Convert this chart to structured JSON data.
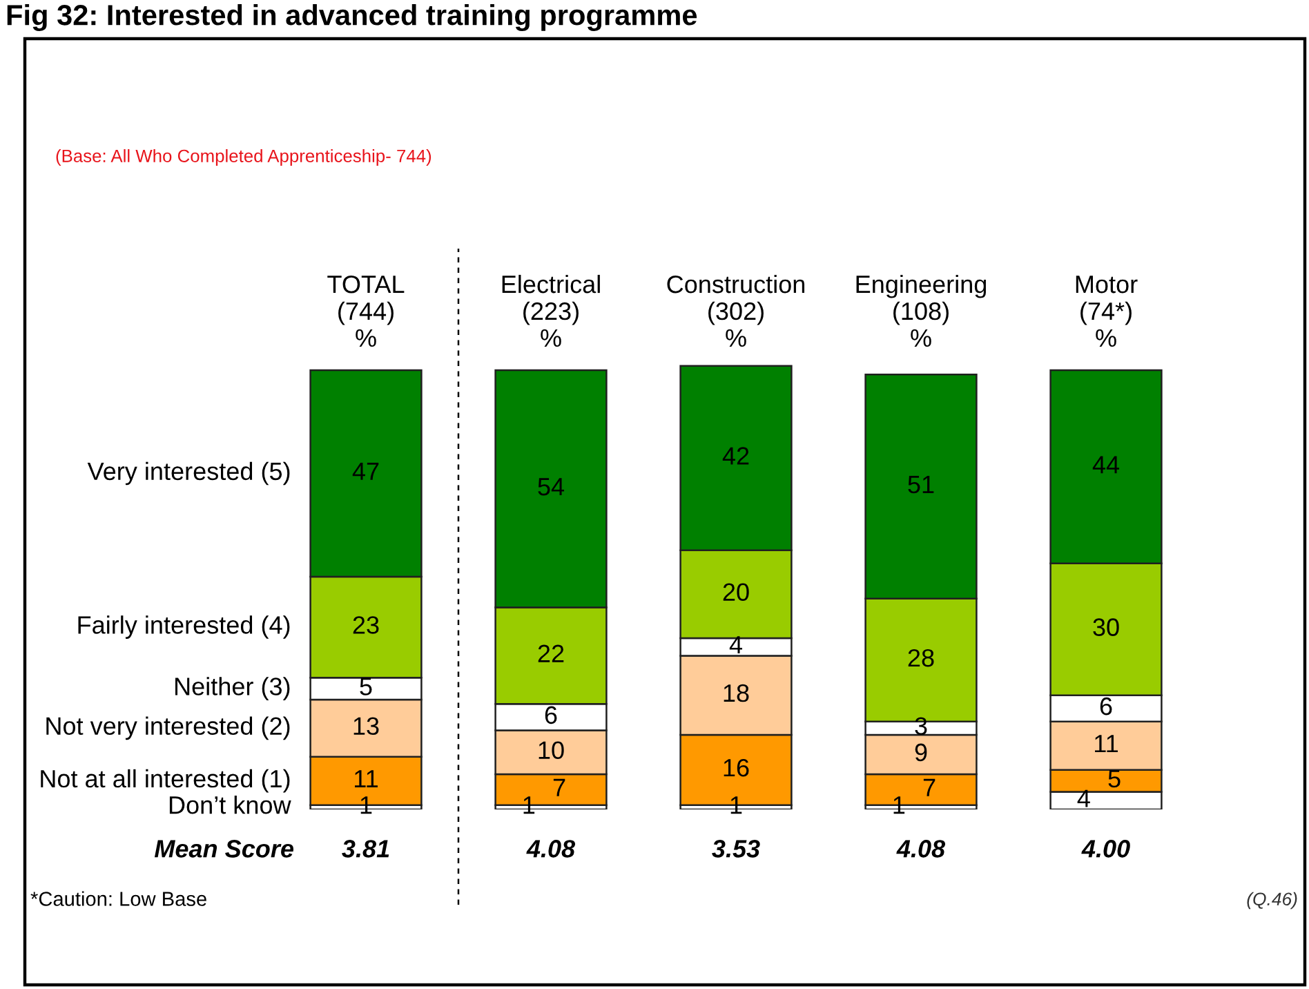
{
  "chart_data": {
    "type": "bar",
    "stacked": true,
    "title": "Fig 32: Interested in advanced training programme",
    "subtitle": "(Base: All Who Completed Apprenticeship- 744)",
    "categories": [
      "TOTAL\n(744)\n%",
      "Electrical\n(223)\n%",
      "Construction\n(302)\n%",
      "Engineering\n(108)\n%",
      "Motor\n(74*)\n%"
    ],
    "series": [
      {
        "name": "Don’t know",
        "color": "#ffffff",
        "values": [
          1,
          1,
          1,
          1,
          4
        ]
      },
      {
        "name": "Not at all interested (1)",
        "color": "#ff9900",
        "values": [
          11,
          7,
          16,
          7,
          5
        ]
      },
      {
        "name": "Not very interested (2)",
        "color": "#ffcc99",
        "values": [
          13,
          10,
          18,
          9,
          11
        ]
      },
      {
        "name": "Neither (3)",
        "color": "#ffffff",
        "values": [
          5,
          6,
          4,
          3,
          6
        ]
      },
      {
        "name": "Fairly interested (4)",
        "color": "#99cc00",
        "values": [
          23,
          22,
          20,
          28,
          30
        ]
      },
      {
        "name": "Very interested (5)",
        "color": "#008000",
        "values": [
          47,
          54,
          42,
          51,
          44
        ]
      }
    ],
    "data_labels": true,
    "annotations": [
      "Mean Score",
      "3.81",
      "4.08",
      "3.53",
      "4.08",
      "4.00",
      "*Caution: Low Base",
      "(Q.46)"
    ]
  }
}
